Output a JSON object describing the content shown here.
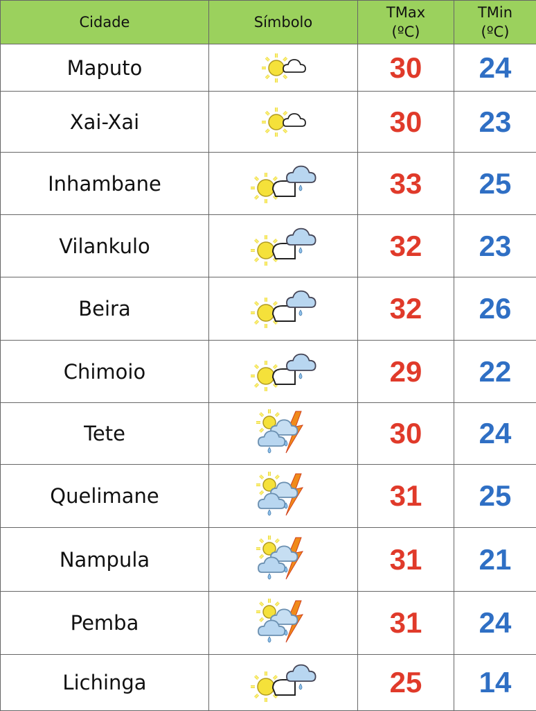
{
  "headers": {
    "city": "Cidade",
    "symbol": "Símbolo",
    "tmax": "TMax",
    "tmax_unit": "(ºC)",
    "tmin": "TMin",
    "tmin_unit": "(ºC)"
  },
  "colors": {
    "header_bg": "#9bd15d",
    "tmax": "#e03a2a",
    "tmin": "#2f6fc4"
  },
  "rows": [
    {
      "city": "Maputo",
      "icon": "sun-cloud",
      "tmax": "30",
      "tmin": "24"
    },
    {
      "city": "Xai-Xai",
      "icon": "sun-cloud",
      "tmax": "30",
      "tmin": "23"
    },
    {
      "city": "Inhambane",
      "icon": "sun-cloud-rain",
      "tmax": "33",
      "tmin": "25"
    },
    {
      "city": "Vilankulo",
      "icon": "sun-cloud-rain",
      "tmax": "32",
      "tmin": "23"
    },
    {
      "city": "Beira",
      "icon": "sun-cloud-rain",
      "tmax": "32",
      "tmin": "26"
    },
    {
      "city": "Chimoio",
      "icon": "sun-cloud-rain",
      "tmax": "29",
      "tmin": "22"
    },
    {
      "city": "Tete",
      "icon": "thunderstorm",
      "tmax": "30",
      "tmin": "24"
    },
    {
      "city": "Quelimane",
      "icon": "thunderstorm",
      "tmax": "31",
      "tmin": "25"
    },
    {
      "city": "Nampula",
      "icon": "thunderstorm",
      "tmax": "31",
      "tmin": "21"
    },
    {
      "city": "Pemba",
      "icon": "thunderstorm",
      "tmax": "31",
      "tmin": "24"
    },
    {
      "city": "Lichinga",
      "icon": "sun-cloud-rain",
      "tmax": "25",
      "tmin": "14"
    }
  ]
}
